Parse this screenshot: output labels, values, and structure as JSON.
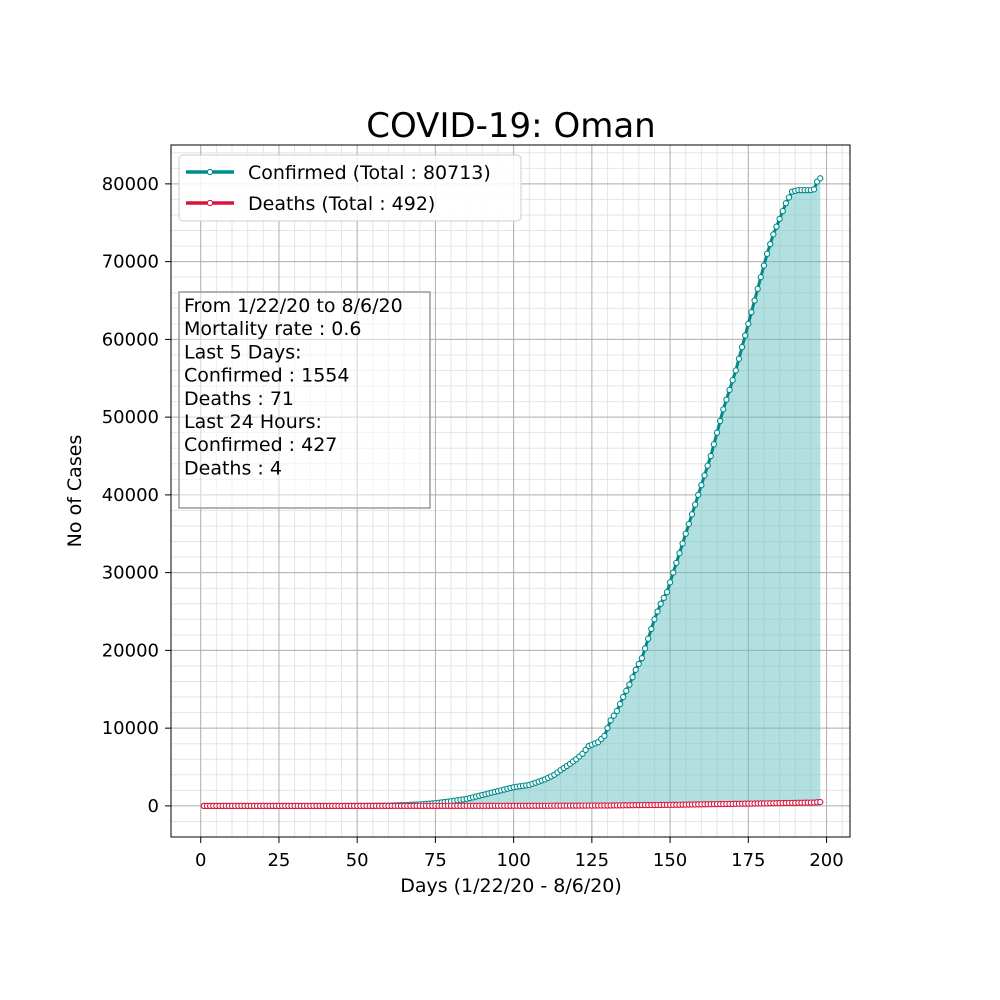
{
  "chart_data": {
    "type": "line",
    "title": "COVID-19: Oman",
    "xlabel": "Days (1/22/20 - 8/6/20)",
    "ylabel": "No of Cases",
    "xlim": [
      -9.5,
      207.5
    ],
    "ylim": [
      -4000,
      85000
    ],
    "x_ticks": [
      0,
      25,
      50,
      75,
      100,
      125,
      150,
      175,
      200
    ],
    "x_tick_labels": [
      "0",
      "25",
      "50",
      "75",
      "100",
      "125",
      "150",
      "175",
      "200"
    ],
    "y_ticks": [
      0,
      10000,
      20000,
      30000,
      40000,
      50000,
      60000,
      70000,
      80000
    ],
    "y_tick_labels": [
      "0",
      "10000",
      "20000",
      "30000",
      "40000",
      "50000",
      "60000",
      "70000",
      "80000"
    ],
    "grid": true,
    "minor_grid": true,
    "legend_position": "top-left",
    "fill_under": "Confirmed",
    "series": [
      {
        "name": "Confirmed (Total : 80713)",
        "color": "#008b8b",
        "fill_color": "#66c2c2",
        "points": [
          [
            1,
            0
          ],
          [
            40,
            0
          ],
          [
            55,
            20
          ],
          [
            60,
            40
          ],
          [
            65,
            100
          ],
          [
            70,
            200
          ],
          [
            75,
            350
          ],
          [
            80,
            600
          ],
          [
            85,
            900
          ],
          [
            90,
            1400
          ],
          [
            95,
            1900
          ],
          [
            100,
            2400
          ],
          [
            105,
            2700
          ],
          [
            110,
            3400
          ],
          [
            113,
            4000
          ],
          [
            115,
            4600
          ],
          [
            118,
            5400
          ],
          [
            120,
            6000
          ],
          [
            122,
            6700
          ],
          [
            124,
            7700
          ],
          [
            127,
            8200
          ],
          [
            129,
            9000
          ],
          [
            131,
            11000
          ],
          [
            133,
            12200
          ],
          [
            135,
            14000
          ],
          [
            137,
            15600
          ],
          [
            139,
            17500
          ],
          [
            141,
            19000
          ],
          [
            143,
            21500
          ],
          [
            145,
            24000
          ],
          [
            147,
            26000
          ],
          [
            149,
            27500
          ],
          [
            151,
            30000
          ],
          [
            153,
            32500
          ],
          [
            155,
            35000
          ],
          [
            157,
            37500
          ],
          [
            159,
            40000
          ],
          [
            161,
            42500
          ],
          [
            163,
            45000
          ],
          [
            165,
            48000
          ],
          [
            167,
            51000
          ],
          [
            169,
            53500
          ],
          [
            171,
            56000
          ],
          [
            173,
            59000
          ],
          [
            175,
            62000
          ],
          [
            177,
            65000
          ],
          [
            179,
            68000
          ],
          [
            181,
            71000
          ],
          [
            183,
            73500
          ],
          [
            185,
            75500
          ],
          [
            187,
            77500
          ],
          [
            189,
            79000
          ],
          [
            191,
            79200
          ],
          [
            193,
            79200
          ],
          [
            195,
            79200
          ],
          [
            196,
            79300
          ],
          [
            197,
            80300
          ],
          [
            198,
            80713
          ]
        ]
      },
      {
        "name": "Deaths (Total : 492)",
        "color": "#dc143c",
        "fill_color": "",
        "points": [
          [
            1,
            0
          ],
          [
            60,
            2
          ],
          [
            90,
            10
          ],
          [
            110,
            20
          ],
          [
            130,
            50
          ],
          [
            140,
            100
          ],
          [
            150,
            130
          ],
          [
            160,
            200
          ],
          [
            170,
            260
          ],
          [
            180,
            320
          ],
          [
            190,
            390
          ],
          [
            196,
            430
          ],
          [
            198,
            492
          ]
        ]
      }
    ],
    "info_box": {
      "lines": [
        "From 1/22/20 to 8/6/20",
        "Mortality rate : 0.6",
        "Last 5 Days:",
        "Confirmed : 1554",
        "Deaths : 71",
        "Last 24 Hours:",
        "Confirmed : 427",
        "Deaths : 4"
      ]
    }
  }
}
